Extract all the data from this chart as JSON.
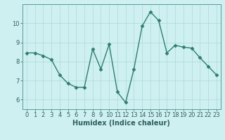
{
  "x": [
    0,
    1,
    2,
    3,
    4,
    5,
    6,
    7,
    8,
    9,
    10,
    11,
    12,
    13,
    14,
    15,
    16,
    17,
    18,
    19,
    20,
    21,
    22,
    23
  ],
  "y": [
    8.45,
    8.45,
    8.3,
    8.1,
    7.3,
    6.85,
    6.65,
    6.65,
    8.65,
    7.6,
    8.9,
    6.4,
    5.85,
    7.6,
    9.85,
    10.6,
    10.15,
    8.45,
    8.85,
    8.75,
    8.7,
    8.2,
    7.75,
    7.3
  ],
  "line_color": "#2e7d6e",
  "marker": "D",
  "markersize": 2.5,
  "linewidth": 1.0,
  "bg_color": "#cff0f0",
  "grid_color": "#aad8d8",
  "xlabel": "Humidex (Indice chaleur)",
  "xlabel_fontsize": 7,
  "tick_fontsize": 6,
  "xlim": [
    -0.5,
    23.5
  ],
  "ylim": [
    5.5,
    11.0
  ],
  "yticks": [
    6,
    7,
    8,
    9,
    10
  ],
  "xticks": [
    0,
    1,
    2,
    3,
    4,
    5,
    6,
    7,
    8,
    9,
    10,
    11,
    12,
    13,
    14,
    15,
    16,
    17,
    18,
    19,
    20,
    21,
    22,
    23
  ],
  "spine_color": "#5a9a9a",
  "tick_color": "#2e5f5f",
  "label_color": "#2e5f5f"
}
